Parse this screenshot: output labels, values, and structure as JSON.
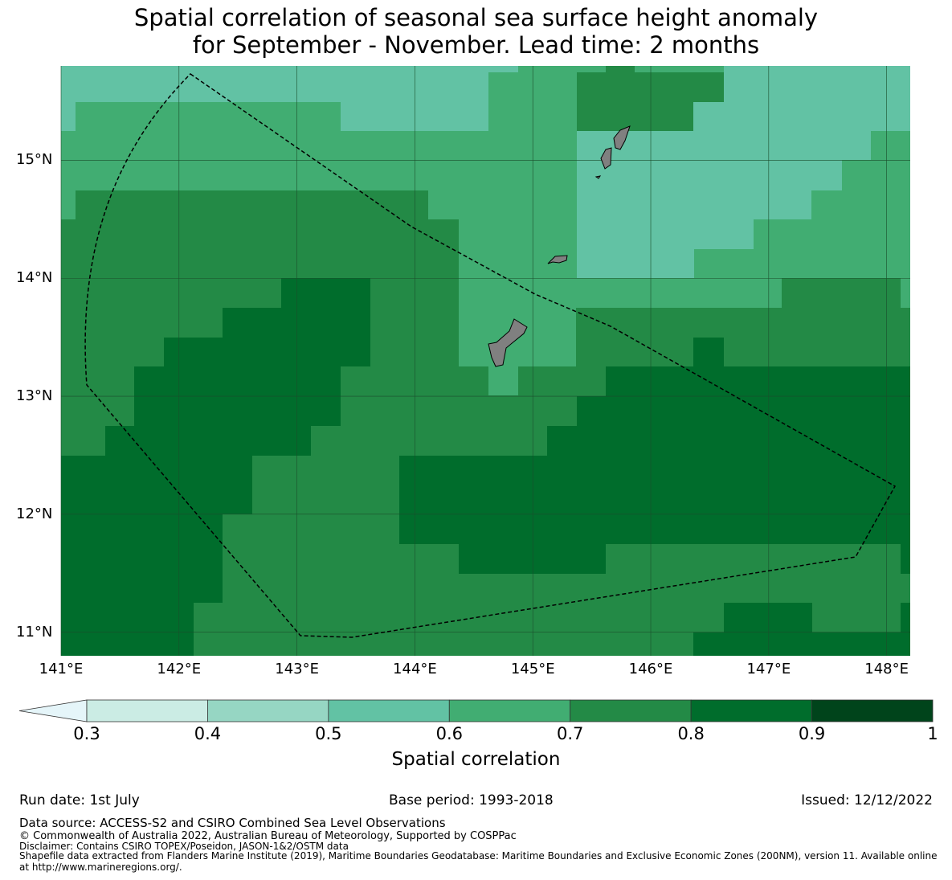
{
  "title": {
    "line1": "Spatial correlation of seasonal sea surface height anomaly",
    "line2": "for September - November. Lead time: 2 months"
  },
  "map": {
    "lat_ticks": [
      {
        "value": 15,
        "label": "15°N"
      },
      {
        "value": 14,
        "label": "14°N"
      },
      {
        "value": 13,
        "label": "13°N"
      },
      {
        "value": 12,
        "label": "12°N"
      },
      {
        "value": 11,
        "label": "11°N"
      }
    ],
    "lon_ticks": [
      {
        "value": 141,
        "label": "141°E"
      },
      {
        "value": 142,
        "label": "142°E"
      },
      {
        "value": 143,
        "label": "143°E"
      },
      {
        "value": 144,
        "label": "144°E"
      },
      {
        "value": 145,
        "label": "145°E"
      },
      {
        "value": 146,
        "label": "146°E"
      },
      {
        "value": 147,
        "label": "147°E"
      },
      {
        "value": 148,
        "label": "148°E"
      }
    ],
    "lon_range": [
      141.0,
      148.2
    ],
    "lat_range": [
      10.8,
      15.8
    ],
    "land_color": "#808080",
    "grid_color": "#1b4d2b"
  },
  "colorbar": {
    "title": "Spatial correlation",
    "levels": [
      0.3,
      0.4,
      0.5,
      0.6,
      0.7,
      0.8,
      0.9,
      1
    ],
    "tick_labels": [
      "0.3",
      "0.4",
      "0.5",
      "0.6",
      "0.7",
      "0.8",
      "0.9",
      "1"
    ],
    "colors": [
      "#cbece4",
      "#96d6c3",
      "#62c2a4",
      "#41ad72",
      "#238a46",
      "#006d2c",
      "#00441b"
    ],
    "under_color": "#e5f5f9"
  },
  "footer": {
    "run_date": "Run date: 1st July",
    "base_period": "Base period: 1993-2018",
    "issued": "Issued: 12/12/2022",
    "data_source": "Data source: ACCESS-S2 and CSIRO Combined Sea Level Observations",
    "copyright": "© Commonwealth of Australia 2022, Australian Bureau of Meteorology, Supported by COSPPac",
    "disclaimer": "Disclaimer: Contains CSIRO TOPEX/Poseidon, JASON-1&2/OSTM data",
    "shapefile": "Shapefile data extracted from Flanders Marine Institute (2019), Maritime Boundaries Geodatabase: Maritime Boundaries and Exclusive Economic Zones (200NM), version 11. Available online at http://www.marineregions.org/."
  }
}
